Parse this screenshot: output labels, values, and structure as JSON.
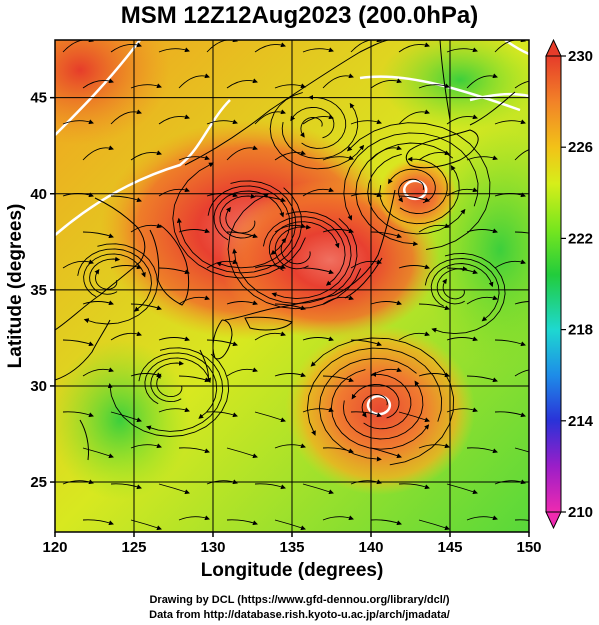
{
  "title": "MSM 12Z12Aug2023 (200.0hPa)",
  "x_axis": {
    "label": "Longitude (degrees)",
    "range": [
      120,
      150
    ],
    "ticks": [
      120,
      125,
      130,
      135,
      140,
      145,
      150
    ],
    "tick_labels": [
      "120",
      "125",
      "130",
      "135",
      "140",
      "145",
      "150"
    ]
  },
  "y_axis": {
    "label": "Latitude  (degrees)",
    "range": [
      22.4,
      48
    ],
    "ticks": [
      25,
      30,
      35,
      40,
      45
    ],
    "tick_labels": [
      "25",
      "30",
      "35",
      "40",
      "45"
    ]
  },
  "colorbar": {
    "min": 210,
    "max": 230,
    "ticks": [
      "230",
      "226",
      "222",
      "218",
      "214",
      "210"
    ],
    "tick_values": [
      230,
      226,
      222,
      218,
      214,
      210
    ],
    "colors": [
      "#ee2ab0",
      "#9b1ec8",
      "#2a32d8",
      "#1e8ce8",
      "#1ed8d0",
      "#22cc3c",
      "#78e61e",
      "#d6ee1a",
      "#f2c218",
      "#f28228",
      "#e63c2a"
    ]
  },
  "field_features": {
    "colors": {
      "warm": "#e63c2a",
      "hot": "#f07060",
      "mid": "#f2c218",
      "cool": "#78e61e",
      "green": "#3ccf3c"
    },
    "anticyclone_centers": [
      [
        132.0,
        38.6
      ],
      [
        135.5,
        37.0
      ]
    ],
    "cyclone_centers": [
      [
        142.8,
        40.2
      ],
      [
        140.5,
        29.0
      ]
    ],
    "cyclone_center_values": [
      226.5,
      227.8
    ]
  },
  "credits": {
    "line1": "Drawing by DCL (https://www.gfd-dennou.org/library/dcl/)",
    "line2": "Data from http://database.rish.kyoto-u.ac.jp/arch/jmadata/"
  }
}
